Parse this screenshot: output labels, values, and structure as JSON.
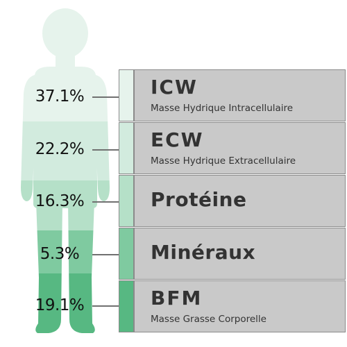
{
  "components": [
    {
      "id": "icw",
      "percent": "37.1%",
      "abbr": "ICW",
      "description": "Masse Hydrique Intracellulaire",
      "color": "#e6f3ec"
    },
    {
      "id": "ecw",
      "percent": "22.2%",
      "abbr": "ECW",
      "description": "Masse Hydrique Extracellulaire",
      "color": "#d2ebde"
    },
    {
      "id": "protein",
      "percent": "16.3%",
      "abbr": "Protéine",
      "description": "",
      "color": "#b5e0c8"
    },
    {
      "id": "minerals",
      "percent": "5.3%",
      "abbr": "Minéraux",
      "description": "",
      "color": "#7fcaa0"
    },
    {
      "id": "bfm",
      "percent": "19.1%",
      "abbr": "BFM",
      "description": "Masse Grasse Corporelle",
      "color": "#57b882"
    }
  ]
}
